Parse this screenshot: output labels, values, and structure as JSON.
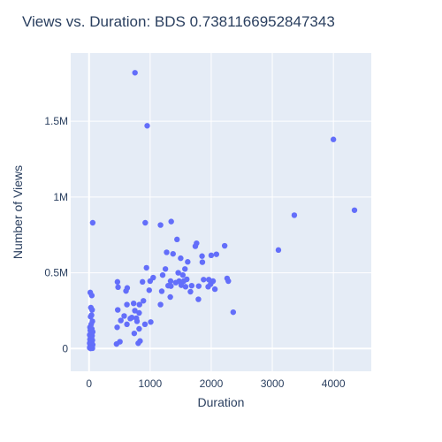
{
  "chart_data": {
    "type": "scatter",
    "title": "Views vs. Duration: BDS 0.7381166952847343",
    "xlabel": "Duration",
    "ylabel": "Number of Views",
    "xlim": [
      -300,
      4620
    ],
    "ylim": [
      -150000,
      1950000
    ],
    "x_ticks": [
      {
        "value": 0,
        "label": "0"
      },
      {
        "value": 1000,
        "label": "1000"
      },
      {
        "value": 2000,
        "label": "2000"
      },
      {
        "value": 3000,
        "label": "3000"
      },
      {
        "value": 4000,
        "label": "4000"
      }
    ],
    "y_ticks": [
      {
        "value": 0,
        "label": "0"
      },
      {
        "value": 500000,
        "label": "0.5M"
      },
      {
        "value": 1000000,
        "label": "1M"
      },
      {
        "value": 1500000,
        "label": "1.5M"
      }
    ],
    "grid": true,
    "legend": "none",
    "colors": {
      "plot_bg": "#e5ecf6",
      "grid": "#ffffff",
      "marker": "#636efa",
      "text": "#2a3f5f"
    },
    "series": [
      {
        "points": [
          [
            752,
            1820000
          ],
          [
            952,
            1470000
          ],
          [
            4000,
            1380000
          ],
          [
            4345,
            913000
          ],
          [
            3360,
            880000
          ],
          [
            60,
            830000
          ],
          [
            920,
            830000
          ],
          [
            1345,
            838000
          ],
          [
            1170,
            815000
          ],
          [
            3100,
            650000
          ],
          [
            1440,
            720000
          ],
          [
            1760,
            695000
          ],
          [
            1740,
            675000
          ],
          [
            2220,
            678000
          ],
          [
            1270,
            635000
          ],
          [
            1375,
            625000
          ],
          [
            1850,
            610000
          ],
          [
            2000,
            615000
          ],
          [
            2085,
            622000
          ],
          [
            1615,
            572000
          ],
          [
            1855,
            570000
          ],
          [
            1500,
            596000
          ],
          [
            940,
            533000
          ],
          [
            1250,
            525000
          ],
          [
            1570,
            525000
          ],
          [
            1460,
            500000
          ],
          [
            1205,
            485000
          ],
          [
            1535,
            485000
          ],
          [
            1050,
            468000
          ],
          [
            1600,
            457000
          ],
          [
            1000,
            445000
          ],
          [
            1335,
            445000
          ],
          [
            1475,
            445000
          ],
          [
            1420,
            435000
          ],
          [
            1875,
            455000
          ],
          [
            1960,
            455000
          ],
          [
            2030,
            445000
          ],
          [
            2280,
            445000
          ],
          [
            2260,
            463000
          ],
          [
            1550,
            445000
          ],
          [
            1510,
            418000
          ],
          [
            1340,
            412000
          ],
          [
            1295,
            415000
          ],
          [
            1580,
            408000
          ],
          [
            1680,
            415000
          ],
          [
            1795,
            412000
          ],
          [
            1950,
            408000
          ],
          [
            1990,
            425000
          ],
          [
            2060,
            392000
          ],
          [
            1660,
            375000
          ],
          [
            1190,
            378000
          ],
          [
            985,
            385000
          ],
          [
            875,
            440000
          ],
          [
            465,
            440000
          ],
          [
            475,
            405000
          ],
          [
            625,
            400000
          ],
          [
            605,
            380000
          ],
          [
            1330,
            340000
          ],
          [
            1790,
            325000
          ],
          [
            890,
            315000
          ],
          [
            1170,
            290000
          ],
          [
            620,
            290000
          ],
          [
            730,
            298000
          ],
          [
            825,
            290000
          ],
          [
            2360,
            240000
          ],
          [
            470,
            255000
          ],
          [
            750,
            250000
          ],
          [
            820,
            235000
          ],
          [
            700,
            205000
          ],
          [
            575,
            215000
          ],
          [
            775,
            200000
          ],
          [
            675,
            198000
          ],
          [
            520,
            185000
          ],
          [
            785,
            180000
          ],
          [
            1010,
            175000
          ],
          [
            915,
            160000
          ],
          [
            620,
            160000
          ],
          [
            460,
            140000
          ],
          [
            820,
            130000
          ],
          [
            740,
            100000
          ],
          [
            835,
            50000
          ],
          [
            505,
            45000
          ],
          [
            805,
            35000
          ],
          [
            450,
            30000
          ],
          [
            20,
            370000
          ],
          [
            45,
            350000
          ],
          [
            30,
            270000
          ],
          [
            50,
            255000
          ],
          [
            40,
            220000
          ],
          [
            25,
            210000
          ],
          [
            55,
            180000
          ],
          [
            35,
            160000
          ],
          [
            15,
            140000
          ],
          [
            45,
            130000
          ],
          [
            20,
            120000
          ],
          [
            60,
            110000
          ],
          [
            30,
            100000
          ],
          [
            10,
            90000
          ],
          [
            50,
            85000
          ],
          [
            25,
            75000
          ],
          [
            40,
            70000
          ],
          [
            15,
            60000
          ],
          [
            55,
            55000
          ],
          [
            30,
            50000
          ],
          [
            20,
            45000
          ],
          [
            45,
            40000
          ],
          [
            10,
            35000
          ],
          [
            35,
            30000
          ],
          [
            60,
            25000
          ],
          [
            25,
            20000
          ],
          [
            50,
            15000
          ],
          [
            15,
            12000
          ],
          [
            40,
            10000
          ],
          [
            30,
            8000
          ],
          [
            20,
            6000
          ],
          [
            10,
            5000
          ],
          [
            45,
            4000
          ],
          [
            35,
            3000
          ],
          [
            55,
            2000
          ],
          [
            25,
            1000
          ]
        ]
      }
    ]
  }
}
